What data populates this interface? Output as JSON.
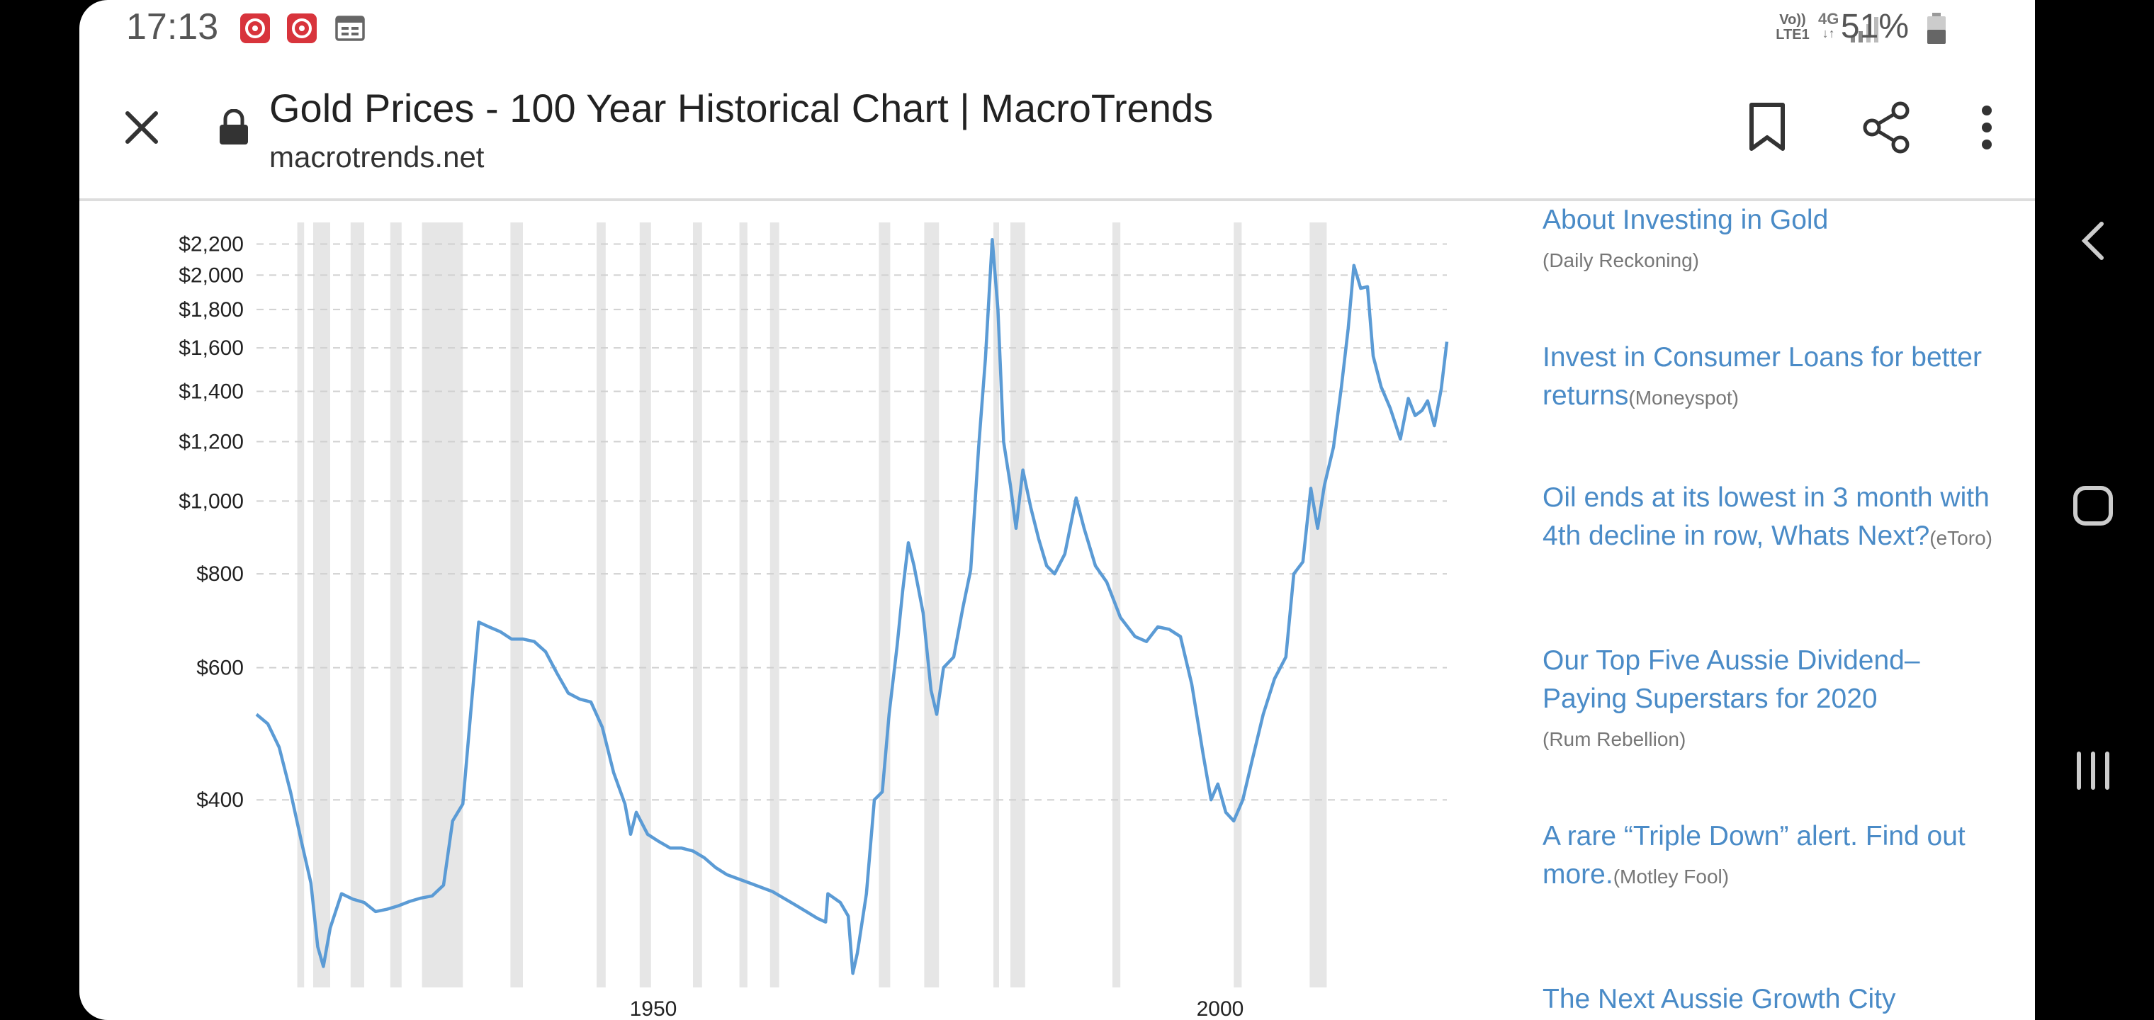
{
  "status_bar": {
    "time": "17:13",
    "network": "Vo)) LTE1",
    "network_type": "4G",
    "battery": "51%"
  },
  "browser": {
    "page_title": "Gold Prices - 100 Year Historical Chart | MacroTrends",
    "domain": "macrotrends.net"
  },
  "chart_data": {
    "type": "line",
    "title": "",
    "xlabel": "",
    "ylabel": "",
    "y_scale": "log",
    "ylim": [
      230,
      2300
    ],
    "xlim": [
      1915,
      2020
    ],
    "y_ticks": [
      "$2,200",
      "$2,000",
      "$1,800",
      "$1,600",
      "$1,400",
      "$1,200",
      "$1,000",
      "$800",
      "$600",
      "$400"
    ],
    "y_tick_values": [
      2200,
      2000,
      1800,
      1600,
      1400,
      1200,
      1000,
      800,
      600,
      400
    ],
    "x_ticks": [
      "1950",
      "2000"
    ],
    "x_tick_values": [
      1950,
      2000
    ],
    "grid": "horizontal dashed",
    "recession_bands": [
      [
        1918.6,
        1919.2
      ],
      [
        1920.0,
        1921.5
      ],
      [
        1923.3,
        1924.5
      ],
      [
        1926.8,
        1927.8
      ],
      [
        1929.6,
        1933.2
      ],
      [
        1937.4,
        1938.5
      ],
      [
        1945.0,
        1945.8
      ],
      [
        1948.8,
        1949.8
      ],
      [
        1953.5,
        1954.3
      ],
      [
        1957.6,
        1958.3
      ],
      [
        1960.3,
        1961.1
      ],
      [
        1969.9,
        1970.9
      ],
      [
        1973.9,
        1975.2
      ],
      [
        1980.0,
        1980.5
      ],
      [
        1981.5,
        1982.8
      ],
      [
        1990.5,
        1991.2
      ],
      [
        2001.2,
        2001.9
      ],
      [
        2007.9,
        2009.4
      ]
    ],
    "series": [
      {
        "color": "#5b9bd5",
        "points": [
          [
            1915.0,
            520
          ],
          [
            1916.0,
            505
          ],
          [
            1917.0,
            470
          ],
          [
            1918.0,
            410
          ],
          [
            1919.0,
            350
          ],
          [
            1919.8,
            310
          ],
          [
            1920.4,
            255
          ],
          [
            1920.9,
            240
          ],
          [
            1921.5,
            270
          ],
          [
            1922.5,
            300
          ],
          [
            1923.5,
            295
          ],
          [
            1924.5,
            292
          ],
          [
            1925.5,
            284
          ],
          [
            1926.5,
            286
          ],
          [
            1927.5,
            289
          ],
          [
            1928.5,
            293
          ],
          [
            1929.5,
            296
          ],
          [
            1930.5,
            298
          ],
          [
            1931.5,
            308
          ],
          [
            1932.3,
            375
          ],
          [
            1933.2,
            395
          ],
          [
            1934.0,
            545
          ],
          [
            1934.6,
            690
          ],
          [
            1935.5,
            680
          ],
          [
            1936.5,
            670
          ],
          [
            1937.5,
            655
          ],
          [
            1938.5,
            655
          ],
          [
            1939.5,
            650
          ],
          [
            1940.5,
            630
          ],
          [
            1941.5,
            590
          ],
          [
            1942.5,
            555
          ],
          [
            1943.5,
            545
          ],
          [
            1944.5,
            540
          ],
          [
            1945.5,
            500
          ],
          [
            1946.5,
            435
          ],
          [
            1947.5,
            395
          ],
          [
            1948.0,
            360
          ],
          [
            1948.5,
            385
          ],
          [
            1949.5,
            360
          ],
          [
            1950.5,
            352
          ],
          [
            1951.5,
            345
          ],
          [
            1952.5,
            345
          ],
          [
            1953.5,
            342
          ],
          [
            1954.5,
            335
          ],
          [
            1955.5,
            325
          ],
          [
            1956.5,
            318
          ],
          [
            1957.5,
            314
          ],
          [
            1958.5,
            310
          ],
          [
            1959.5,
            306
          ],
          [
            1960.5,
            302
          ],
          [
            1961.5,
            296
          ],
          [
            1962.5,
            290
          ],
          [
            1963.5,
            284
          ],
          [
            1964.5,
            278
          ],
          [
            1965.2,
            275
          ],
          [
            1965.4,
            300
          ],
          [
            1966.5,
            292
          ],
          [
            1967.2,
            280
          ],
          [
            1967.6,
            235
          ],
          [
            1968.0,
            250
          ],
          [
            1968.8,
            300
          ],
          [
            1969.5,
            400
          ],
          [
            1970.2,
            410
          ],
          [
            1970.8,
            520
          ],
          [
            1971.5,
            640
          ],
          [
            1972.0,
            760
          ],
          [
            1972.5,
            880
          ],
          [
            1973.0,
            820
          ],
          [
            1973.8,
            710
          ],
          [
            1974.5,
            560
          ],
          [
            1975.0,
            520
          ],
          [
            1975.6,
            600
          ],
          [
            1976.5,
            620
          ],
          [
            1977.3,
            720
          ],
          [
            1978.0,
            810
          ],
          [
            1978.7,
            1180
          ],
          [
            1979.3,
            1550
          ],
          [
            1979.9,
            2230
          ],
          [
            1980.4,
            1800
          ],
          [
            1980.9,
            1200
          ],
          [
            1981.5,
            1050
          ],
          [
            1982.0,
            920
          ],
          [
            1982.6,
            1100
          ],
          [
            1983.3,
            980
          ],
          [
            1984.0,
            890
          ],
          [
            1984.7,
            820
          ],
          [
            1985.4,
            800
          ],
          [
            1986.3,
            850
          ],
          [
            1987.3,
            1010
          ],
          [
            1988.0,
            920
          ],
          [
            1989.0,
            820
          ],
          [
            1990.0,
            780
          ],
          [
            1991.2,
            700
          ],
          [
            1992.5,
            660
          ],
          [
            1993.5,
            650
          ],
          [
            1994.5,
            680
          ],
          [
            1995.5,
            675
          ],
          [
            1996.5,
            660
          ],
          [
            1997.5,
            570
          ],
          [
            1998.5,
            460
          ],
          [
            1999.2,
            400
          ],
          [
            1999.8,
            420
          ],
          [
            2000.5,
            385
          ],
          [
            2001.2,
            375
          ],
          [
            2002.0,
            400
          ],
          [
            2002.8,
            450
          ],
          [
            2003.8,
            520
          ],
          [
            2004.8,
            580
          ],
          [
            2005.8,
            620
          ],
          [
            2006.5,
            800
          ],
          [
            2007.3,
            830
          ],
          [
            2008.0,
            1040
          ],
          [
            2008.6,
            920
          ],
          [
            2009.2,
            1050
          ],
          [
            2010.0,
            1180
          ],
          [
            2010.7,
            1420
          ],
          [
            2011.3,
            1700
          ],
          [
            2011.8,
            2060
          ],
          [
            2012.4,
            1920
          ],
          [
            2013.0,
            1930
          ],
          [
            2013.5,
            1560
          ],
          [
            2014.2,
            1420
          ],
          [
            2015.0,
            1330
          ],
          [
            2015.9,
            1210
          ],
          [
            2016.6,
            1370
          ],
          [
            2017.2,
            1300
          ],
          [
            2017.8,
            1320
          ],
          [
            2018.3,
            1360
          ],
          [
            2018.9,
            1260
          ],
          [
            2019.5,
            1410
          ],
          [
            2020.0,
            1630
          ]
        ]
      }
    ]
  },
  "news": [
    {
      "headline": "About Investing in Gold",
      "source": "(Daily Reckoning)"
    },
    {
      "headline": "Invest in Consumer Loans for better returns",
      "source": "(Moneyspot)"
    },
    {
      "headline": "Oil ends at its lowest in 3 month with 4th decline in row, Whats Next?",
      "source": "(eToro)"
    },
    {
      "headline": "Our Top Five Aussie Dividend–Paying Superstars for 2020",
      "source": "(Rum Rebellion)"
    },
    {
      "headline": "A rare “Triple Down” alert. Find out more.",
      "source": "(Motley Fool)"
    },
    {
      "headline": "The Next Aussie Growth City",
      "source": ""
    }
  ],
  "icons": {
    "close": "close-icon",
    "lock": "lock-icon",
    "bookmark": "bookmark-icon",
    "share": "share-icon",
    "menu": "more-vert-icon",
    "back": "back-icon",
    "home": "home-icon",
    "recents": "recents-icon"
  }
}
